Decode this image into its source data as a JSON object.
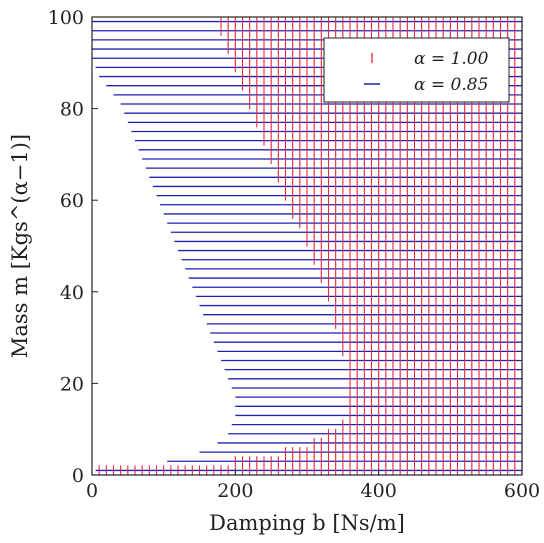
{
  "chart_data": {
    "type": "scatter",
    "xlabel": "Damping b [Ns/m]",
    "ylabel": "Mass m [Kgs^(α−1)]",
    "xlim": [
      0,
      600
    ],
    "ylim": [
      0,
      100
    ],
    "xticks": [
      "0",
      "200",
      "400",
      "600"
    ],
    "yticks": [
      "0",
      "20",
      "40",
      "60",
      "80",
      "100"
    ],
    "grid": false,
    "legend_position": "top-right",
    "grid_sampling": {
      "b_step": 10,
      "m_rows": [
        1,
        3,
        5,
        7,
        9,
        11,
        13,
        15,
        17,
        19,
        21,
        23,
        25,
        27,
        29,
        31,
        33,
        35,
        37,
        39,
        41,
        43,
        45,
        47,
        49,
        51,
        53,
        55,
        57,
        59,
        61,
        63,
        65,
        67,
        69,
        71,
        73,
        75,
        77,
        79,
        81,
        83,
        85,
        87,
        89,
        91,
        93,
        95,
        97,
        99
      ]
    },
    "series": [
      {
        "name": "α = 1.00",
        "color": "#e8283c",
        "marker": "vertical-tick",
        "description": "stable region: b ≥ lower boundary for each mass row",
        "lower_boundary": {
          "m": [
            1,
            3,
            5,
            7,
            9,
            11,
            13,
            15,
            17,
            19,
            21,
            23,
            25,
            27,
            29,
            31,
            33,
            35,
            37,
            39,
            41,
            43,
            45,
            47,
            49,
            51,
            53,
            55,
            57,
            59,
            61,
            63,
            65,
            67,
            69,
            71,
            73,
            75,
            77,
            79,
            81,
            83,
            85,
            87,
            89,
            91,
            93,
            95,
            97,
            99
          ],
          "b_min": [
            10,
            200,
            270,
            310,
            330,
            350,
            355,
            360,
            360,
            360,
            360,
            360,
            355,
            350,
            350,
            345,
            340,
            340,
            335,
            330,
            325,
            320,
            315,
            310,
            305,
            300,
            295,
            290,
            280,
            275,
            270,
            265,
            260,
            255,
            250,
            245,
            240,
            235,
            230,
            225,
            220,
            215,
            210,
            205,
            200,
            195,
            190,
            185,
            180,
            175
          ]
        }
      },
      {
        "name": "α = 0.85",
        "color": "#1f22b3",
        "marker": "horizontal-line",
        "description": "stable region: horizontal line from lower boundary to b = 600 for each mass row",
        "lower_boundary": {
          "m": [
            1,
            3,
            5,
            7,
            9,
            11,
            13,
            15,
            17,
            19,
            21,
            23,
            25,
            27,
            29,
            31,
            33,
            35,
            37,
            39,
            41,
            43,
            45,
            47,
            49,
            51,
            53,
            55,
            57,
            59,
            61,
            63,
            65,
            67,
            69,
            71,
            73,
            75,
            77,
            79,
            81,
            83,
            85,
            87,
            89,
            91,
            93,
            95,
            97,
            99
          ],
          "b_min": [
            5,
            105,
            150,
            175,
            190,
            195,
            200,
            200,
            200,
            195,
            190,
            185,
            180,
            175,
            170,
            165,
            160,
            155,
            150,
            145,
            140,
            135,
            130,
            125,
            120,
            115,
            110,
            105,
            100,
            95,
            90,
            85,
            80,
            75,
            70,
            65,
            60,
            55,
            50,
            45,
            40,
            30,
            20,
            10,
            5,
            0,
            0,
            0,
            0,
            0
          ]
        }
      }
    ]
  }
}
